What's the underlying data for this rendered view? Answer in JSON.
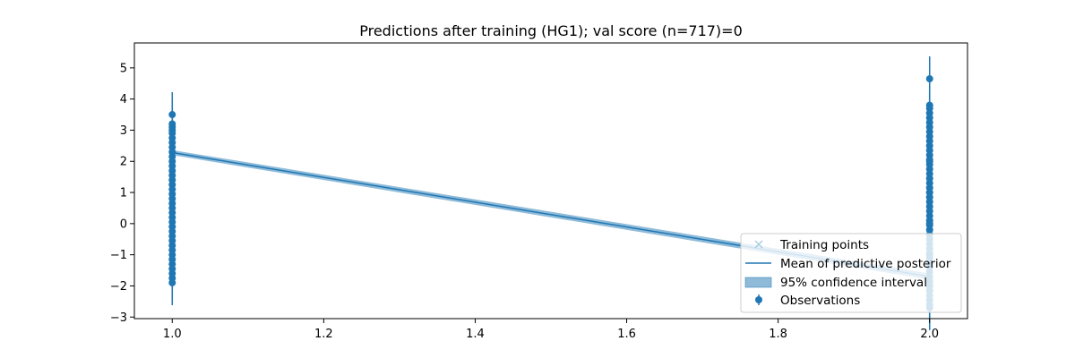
{
  "chart_data": {
    "type": "scatter",
    "title": "Predictions after training (HG1); val score (n=717)=0",
    "xlabel": "",
    "ylabel": "",
    "xlim": [
      0.95,
      2.05
    ],
    "ylim": [
      -3.05,
      5.8
    ],
    "x_ticks": [
      1.0,
      1.2,
      1.4,
      1.6,
      1.8,
      2.0
    ],
    "x_tick_labels": [
      "1.0",
      "1.2",
      "1.4",
      "1.6",
      "1.8",
      "2.0"
    ],
    "y_ticks": [
      -3,
      -2,
      -1,
      0,
      1,
      2,
      3,
      4,
      5
    ],
    "y_tick_labels": [
      "−3",
      "−2",
      "−1",
      "0",
      "1",
      "2",
      "3",
      "4",
      "5"
    ],
    "grid": false,
    "legend_position": "bottom-right",
    "colors": {
      "main": "#1f77b4",
      "training": "#a6cee3",
      "ci_fill": "#1f77b4"
    },
    "series": [
      {
        "name": "Training points",
        "kind": "marker-x",
        "x": [],
        "y": []
      },
      {
        "name": "Mean of predictive posterior",
        "kind": "line",
        "x": [
          1.0,
          2.0
        ],
        "y": [
          2.28,
          -1.7
        ]
      },
      {
        "name": "95% confidence interval",
        "kind": "band",
        "x": [
          1.0,
          2.0
        ],
        "lower": [
          2.2,
          -1.8
        ],
        "upper": [
          2.36,
          -1.6
        ]
      },
      {
        "name": "Observations",
        "kind": "errorbar",
        "x": [
          1.0,
          1.0,
          1.0,
          1.0,
          1.0,
          1.0,
          1.0,
          1.0,
          1.0,
          1.0,
          1.0,
          1.0,
          1.0,
          1.0,
          1.0,
          1.0,
          1.0,
          1.0,
          1.0,
          1.0,
          1.0,
          1.0,
          1.0,
          1.0,
          1.0,
          1.0,
          1.0,
          1.0,
          1.0,
          1.0,
          1.0,
          1.0,
          1.0,
          1.0,
          1.0,
          1.0,
          1.0,
          2.0,
          2.0,
          2.0,
          2.0,
          2.0,
          2.0,
          2.0,
          2.0,
          2.0,
          2.0,
          2.0,
          2.0,
          2.0,
          2.0,
          2.0,
          2.0,
          2.0,
          2.0,
          2.0,
          2.0,
          2.0,
          2.0,
          2.0,
          2.0,
          2.0,
          2.0,
          2.0,
          2.0,
          2.0,
          2.0,
          2.0,
          2.0,
          2.0,
          2.0,
          2.0,
          2.0,
          2.0,
          2.0,
          2.0,
          2.0,
          2.0,
          2.0,
          2.0,
          2.0,
          2.0,
          2.0,
          2.0,
          2.0,
          2.0,
          2.0,
          2.0
        ],
        "y": [
          3.5,
          3.2,
          3.1,
          3.0,
          2.9,
          2.75,
          2.6,
          2.45,
          2.3,
          2.15,
          2.0,
          1.85,
          1.7,
          1.55,
          1.4,
          1.25,
          1.1,
          0.95,
          0.8,
          0.65,
          0.5,
          0.35,
          0.2,
          0.05,
          -0.1,
          -0.25,
          -0.4,
          -0.55,
          -0.7,
          -0.85,
          -1.0,
          -1.15,
          -1.3,
          -1.45,
          -1.6,
          -1.75,
          -1.9,
          4.65,
          3.8,
          3.7,
          3.55,
          3.4,
          3.25,
          3.1,
          2.95,
          2.8,
          2.65,
          2.5,
          2.35,
          2.2,
          2.05,
          1.9,
          1.75,
          1.6,
          1.45,
          1.3,
          1.15,
          1.0,
          0.85,
          0.7,
          0.55,
          0.4,
          0.25,
          0.1,
          -0.05,
          -0.2,
          -0.35,
          -0.5,
          -0.65,
          -0.8,
          -0.95,
          -1.1,
          -1.25,
          -1.4,
          -1.55,
          -1.7,
          -1.85,
          -2.0,
          -2.15,
          -2.3,
          -2.45,
          -2.6,
          -2.7,
          -2.0,
          -1.0,
          0.0,
          1.0,
          2.0
        ],
        "yerr": 0.72
      }
    ]
  }
}
